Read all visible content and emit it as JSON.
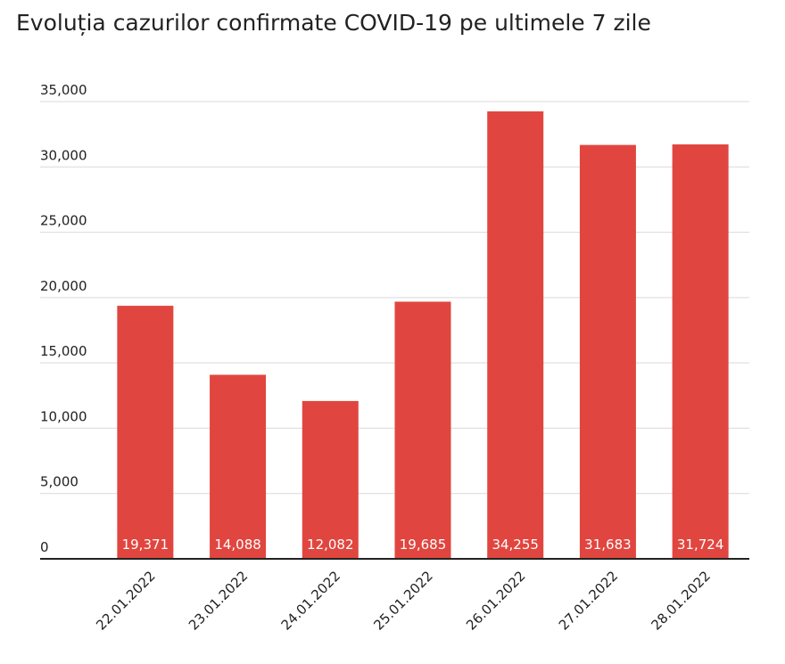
{
  "chart_data": {
    "type": "bar",
    "title": "Evoluția cazurilor confirmate COVID-19 pe ultimele 7 zile",
    "categories": [
      "22.01.2022",
      "23.01.2022",
      "24.01.2022",
      "25.01.2022",
      "26.01.2022",
      "27.01.2022",
      "28.01.2022"
    ],
    "values": [
      19371,
      14088,
      12082,
      19685,
      34255,
      31683,
      31724
    ],
    "value_labels": [
      "19,371",
      "14,088",
      "12,082",
      "19,685",
      "34,255",
      "31,683",
      "31,724"
    ],
    "color": "#e0463f",
    "ylim": [
      0,
      35000
    ],
    "yticks": [
      0,
      {
        "value": 5000,
        "label": "5,000"
      },
      {
        "value": 10000,
        "label": "10,000"
      },
      {
        "value": 15000,
        "label": "15,000"
      },
      {
        "value": 20000,
        "label": "20,000"
      },
      {
        "value": 25000,
        "label": "25,000"
      },
      {
        "value": 30000,
        "label": "30,000"
      },
      {
        "value": 35000,
        "label": "35,000"
      }
    ],
    "grid": true
  }
}
